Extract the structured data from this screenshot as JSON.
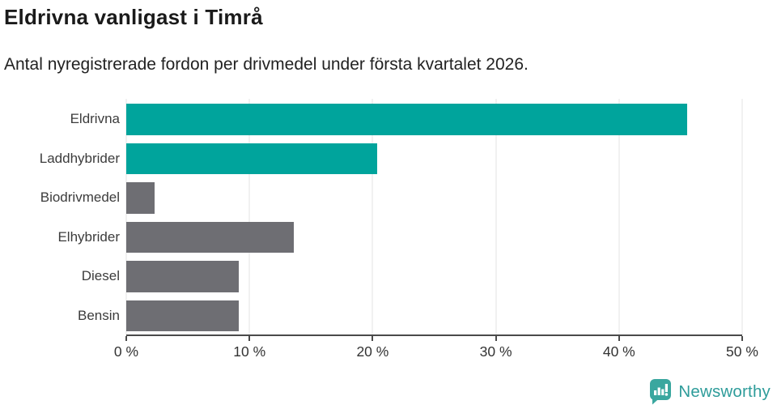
{
  "header": {
    "title": "Eldrivna vanligast i Timrå",
    "subtitle": "Antal nyregistrerade fordon per drivmedel under första kvartalet 2026."
  },
  "chart_data": {
    "type": "bar",
    "orientation": "horizontal",
    "title": "Eldrivna vanligast i Timrå",
    "subtitle": "Antal nyregistrerade fordon per drivmedel under första kvartalet 2026.",
    "categories": [
      "Eldrivna",
      "Laddhybrider",
      "Biodrivmedel",
      "Elhybrider",
      "Diesel",
      "Bensin"
    ],
    "values": [
      45.5,
      20.4,
      2.3,
      13.6,
      9.1,
      9.1
    ],
    "unit": "%",
    "xlabel": "",
    "ylabel": "",
    "xlim": [
      0,
      50
    ],
    "x_ticks": [
      0,
      10,
      20,
      30,
      40,
      50
    ],
    "x_tick_labels": [
      "0 %",
      "10 %",
      "20 %",
      "30 %",
      "40 %",
      "50 %"
    ],
    "bar_colors": [
      "#00a49c",
      "#00a49c",
      "#6e6e73",
      "#6e6e73",
      "#6e6e73",
      "#6e6e73"
    ],
    "highlight_color": "#00a49c",
    "default_color": "#6e6e73",
    "grid": true,
    "gridline_color": "#e3e3e3",
    "axis_color": "#4a4a4a",
    "legend": "none"
  },
  "footer": {
    "brand": "Newsworthy",
    "brand_color": "#2e9c9a",
    "icon": "newsworthy-chart-bubble-icon",
    "icon_color": "#3aa79f"
  }
}
